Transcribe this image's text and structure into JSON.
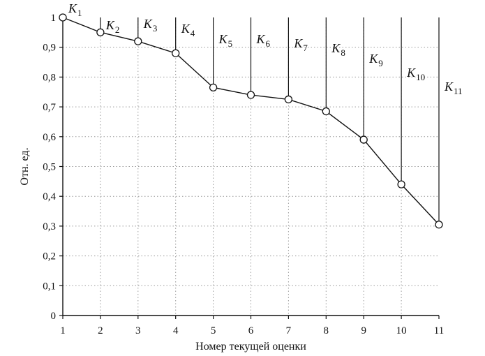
{
  "chart_data": {
    "type": "line",
    "xlabel": "Номер текущей оценки",
    "ylabel": "Отн. ед.",
    "x": [
      1,
      2,
      3,
      4,
      5,
      6,
      7,
      8,
      9,
      10,
      11
    ],
    "series": [
      {
        "values": [
          1.0,
          0.95,
          0.92,
          0.88,
          0.765,
          0.74,
          0.725,
          0.685,
          0.59,
          0.44,
          0.305
        ]
      }
    ],
    "point_labels": [
      {
        "main": "K",
        "sub": "1"
      },
      {
        "main": "K",
        "sub": "2"
      },
      {
        "main": "K",
        "sub": "3"
      },
      {
        "main": "K",
        "sub": "4"
      },
      {
        "main": "K",
        "sub": "5"
      },
      {
        "main": "K",
        "sub": "6"
      },
      {
        "main": "K",
        "sub": "7"
      },
      {
        "main": "K",
        "sub": "8"
      },
      {
        "main": "K",
        "sub": "9"
      },
      {
        "main": "K",
        "sub": "10"
      },
      {
        "main": "K",
        "sub": "11"
      }
    ],
    "x_ticks": [
      "1",
      "2",
      "3",
      "4",
      "5",
      "6",
      "7",
      "8",
      "9",
      "10",
      "11"
    ],
    "y_ticks": [
      "0",
      "0,1",
      "0,2",
      "0,3",
      "0,4",
      "0,5",
      "0,6",
      "0,7",
      "0,8",
      "0,9",
      "1"
    ],
    "xlim": [
      1,
      11
    ],
    "ylim": [
      0,
      1
    ],
    "grid": true,
    "marker": "open-circle",
    "line_color": "#111111",
    "grid_color": "#9a9a9a"
  }
}
